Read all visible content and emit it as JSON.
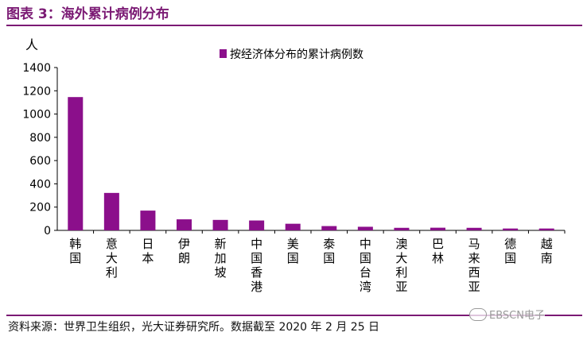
{
  "figure": {
    "title": "图表 3：海外累计病例分布",
    "source": "资料来源：世界卫生组织，光大证券研究所。数据截至 2020 年 2 月 25 日",
    "watermark": "EBSCN电子",
    "accent_color": "#7b1a74"
  },
  "chart_data": {
    "type": "bar",
    "y_unit": "人",
    "ylim": [
      0,
      1400
    ],
    "yticks": [
      0,
      200,
      400,
      600,
      800,
      1000,
      1200,
      1400
    ],
    "legend": "按经济体分布的累计病例数",
    "legend_position": "top-center",
    "grid": false,
    "bar_color": "#8b0f8b",
    "categories": [
      "韩国",
      "意大利",
      "日本",
      "伊朗",
      "新加坡",
      "中国香港",
      "美国",
      "泰国",
      "中国台湾",
      "澳大利亚",
      "巴林",
      "马来西亚",
      "德国",
      "越南"
    ],
    "series": [
      {
        "name": "按经济体分布的累计病例数",
        "values": [
          1146,
          322,
          170,
          95,
          90,
          85,
          57,
          37,
          31,
          22,
          23,
          22,
          16,
          16
        ]
      }
    ]
  }
}
